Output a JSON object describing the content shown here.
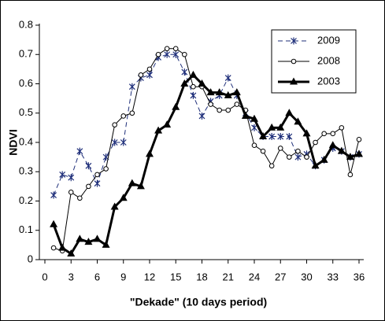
{
  "chart_data": {
    "type": "line",
    "x_label": "\"Dekade\" (10 days period)",
    "y_label": "NDVI",
    "x": [
      1,
      2,
      3,
      4,
      5,
      6,
      7,
      8,
      9,
      10,
      11,
      12,
      13,
      14,
      15,
      16,
      17,
      18,
      19,
      20,
      21,
      22,
      23,
      24,
      25,
      26,
      27,
      28,
      29,
      30,
      31,
      32,
      33,
      34,
      35,
      36
    ],
    "series": [
      {
        "name": "2009",
        "color": "#1f2f7a",
        "line_style": "dashed",
        "line_width": 1,
        "marker": "star",
        "values": [
          0.22,
          0.29,
          0.28,
          0.37,
          0.32,
          0.26,
          0.35,
          0.4,
          0.4,
          0.59,
          0.62,
          0.63,
          0.69,
          0.7,
          0.7,
          0.64,
          0.56,
          0.49,
          0.54,
          0.56,
          0.62,
          0.56,
          0.5,
          0.45,
          0.42,
          0.42,
          0.42,
          0.42,
          0.35,
          0.36,
          0.32,
          0.34,
          0.38,
          0.37,
          0.35,
          0.36
        ]
      },
      {
        "name": "2008",
        "color": "#000000",
        "line_style": "solid",
        "line_width": 1,
        "marker": "circle",
        "values": [
          0.04,
          0.03,
          0.23,
          0.21,
          0.25,
          0.29,
          0.31,
          0.46,
          0.49,
          0.5,
          0.63,
          0.65,
          0.7,
          0.72,
          0.72,
          0.7,
          0.59,
          0.59,
          0.53,
          0.51,
          0.51,
          0.53,
          0.51,
          0.39,
          0.37,
          0.32,
          0.38,
          0.35,
          0.37,
          0.35,
          0.4,
          0.43,
          0.43,
          0.45,
          0.29,
          0.41
        ]
      },
      {
        "name": "2003",
        "color": "#000000",
        "line_style": "solid",
        "line_width": 3,
        "marker": "triangle",
        "values": [
          0.12,
          0.04,
          0.02,
          0.07,
          0.06,
          0.07,
          0.05,
          0.18,
          0.21,
          0.26,
          0.25,
          0.36,
          0.44,
          0.46,
          0.52,
          0.6,
          0.63,
          0.6,
          0.57,
          0.57,
          0.56,
          0.57,
          0.49,
          0.48,
          0.42,
          0.45,
          0.45,
          0.5,
          0.47,
          0.43,
          0.32,
          0.34,
          0.39,
          0.37,
          0.35,
          0.36
        ]
      }
    ],
    "xlim": [
      0,
      36
    ],
    "xticks": [
      0,
      3,
      6,
      9,
      12,
      15,
      18,
      21,
      24,
      27,
      30,
      33,
      36
    ],
    "ylim": [
      0,
      0.8
    ],
    "yticks": [
      0,
      0.1,
      0.2,
      0.3,
      0.4,
      0.5,
      0.6,
      0.7,
      0.8
    ],
    "grid": false,
    "legend": "upper right"
  }
}
